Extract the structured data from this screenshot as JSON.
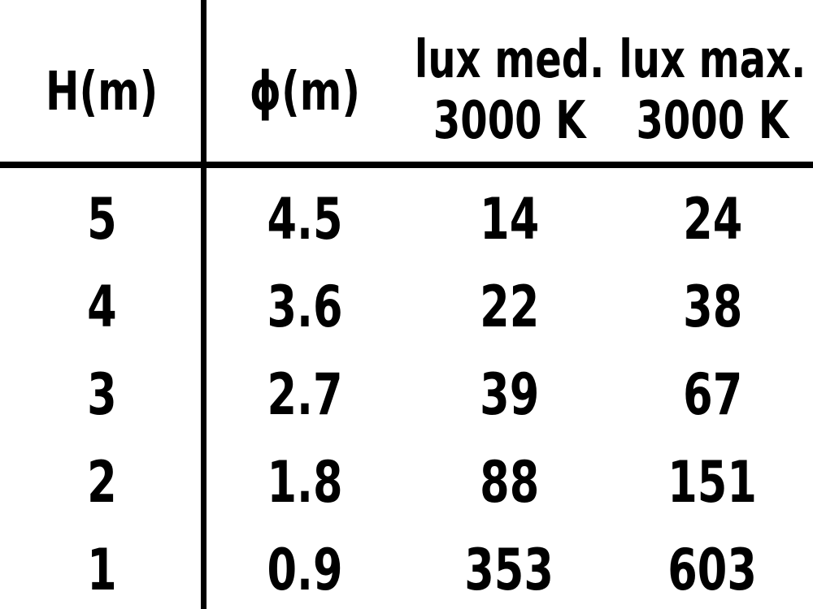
{
  "colors": {
    "background": "#ffffff",
    "text": "#000000",
    "rule": "#000000"
  },
  "chart_data": {
    "type": "table",
    "columns": [
      {
        "label": "H(m)",
        "sublabel": ""
      },
      {
        "label": "ϕ(m)",
        "sublabel": ""
      },
      {
        "label": "lux med.",
        "sublabel": "3000 K"
      },
      {
        "label": "lux max.",
        "sublabel": "3000 K"
      }
    ],
    "rows": [
      [
        "5",
        "4.5",
        "14",
        "24"
      ],
      [
        "4",
        "3.6",
        "22",
        "38"
      ],
      [
        "3",
        "2.7",
        "39",
        "67"
      ],
      [
        "2",
        "1.8",
        "88",
        "151"
      ],
      [
        "1",
        "0.9",
        "353",
        "603"
      ]
    ],
    "layout": {
      "vertical_rule_after_column": 1,
      "horizontal_rule_below_header": true,
      "grid": "off"
    }
  }
}
